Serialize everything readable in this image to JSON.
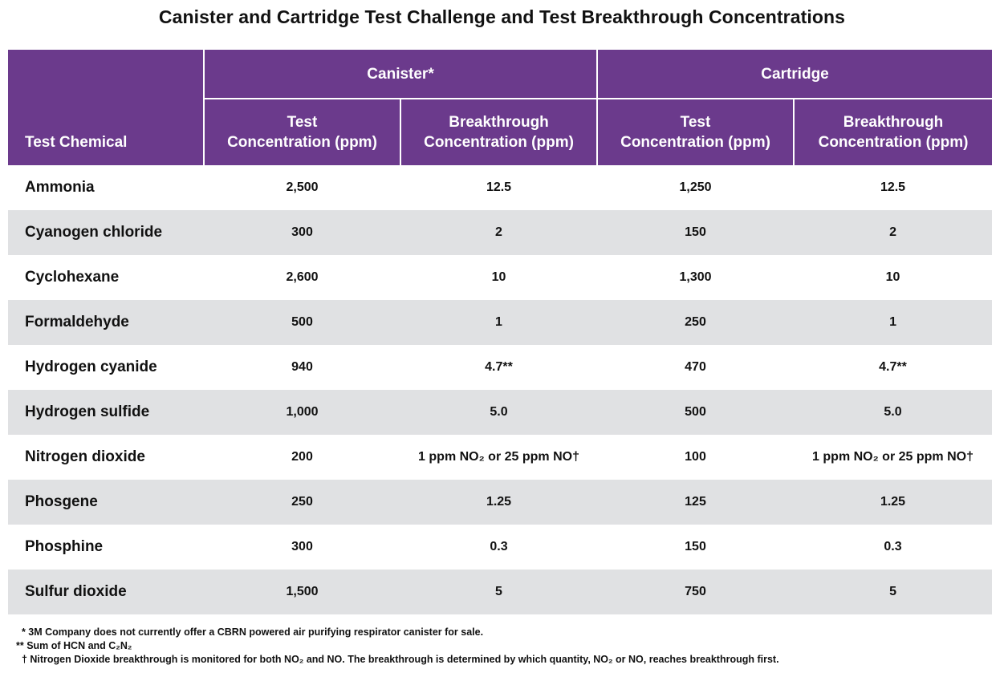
{
  "title": "Canister and Cartridge Test Challenge and Test Breakthrough Concentrations",
  "header": {
    "test_chemical": "Test Chemical",
    "group_canister": "Canister*",
    "group_cartridge": "Cartridge",
    "sub_test_line1": "Test",
    "sub_test_line2": "Concentration (ppm)",
    "sub_break_line1": "Breakthrough",
    "sub_break_line2": "Concentration (ppm)"
  },
  "rows": [
    {
      "name": "Ammonia",
      "can_test": "2,500",
      "can_break": "12.5",
      "car_test": "1,250",
      "car_break": "12.5"
    },
    {
      "name": "Cyanogen chloride",
      "can_test": "300",
      "can_break": "2",
      "car_test": "150",
      "car_break": "2"
    },
    {
      "name": "Cyclohexane",
      "can_test": "2,600",
      "can_break": "10",
      "car_test": "1,300",
      "car_break": "10"
    },
    {
      "name": "Formaldehyde",
      "can_test": "500",
      "can_break": "1",
      "car_test": "250",
      "car_break": "1"
    },
    {
      "name": "Hydrogen cyanide",
      "can_test": "940",
      "can_break": "4.7**",
      "car_test": "470",
      "car_break": "4.7**"
    },
    {
      "name": "Hydrogen sulfide",
      "can_test": "1,000",
      "can_break": "5.0",
      "car_test": "500",
      "car_break": "5.0"
    },
    {
      "name": "Nitrogen dioxide",
      "can_test": "200",
      "can_break": "1 ppm NO₂ or 25 ppm NO†",
      "car_test": "100",
      "car_break": "1 ppm NO₂ or 25 ppm NO†"
    },
    {
      "name": "Phosgene",
      "can_test": "250",
      "can_break": "1.25",
      "car_test": "125",
      "car_break": "1.25"
    },
    {
      "name": "Phosphine",
      "can_test": "300",
      "can_break": "0.3",
      "car_test": "150",
      "car_break": "0.3"
    },
    {
      "name": "Sulfur dioxide",
      "can_test": "1,500",
      "can_break": "5",
      "car_test": "750",
      "car_break": "5"
    }
  ],
  "footnotes": [
    "  * 3M Company does not currently offer a CBRN powered air purifying respirator canister for sale.",
    "** Sum of HCN and C₂N₂",
    "  † Nitrogen Dioxide breakthrough is monitored for both NO₂ and NO. The breakthrough is determined by which quantity, NO₂ or NO, reaches breakthrough first."
  ],
  "colors": {
    "header_bg": "#6b3a8c",
    "alt_row_bg": "#e0e1e3"
  }
}
